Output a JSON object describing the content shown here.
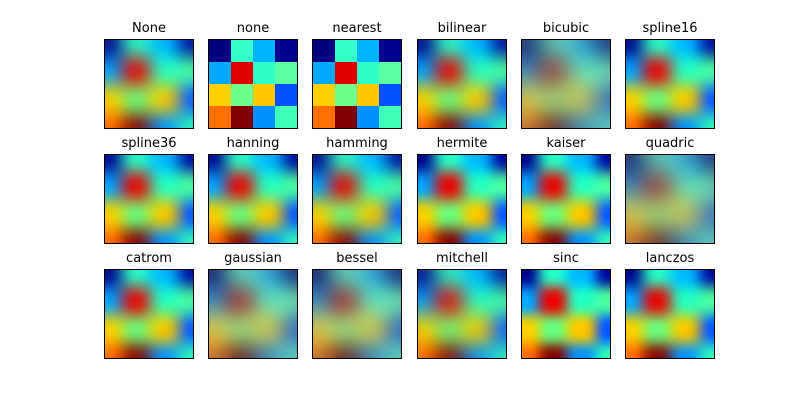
{
  "chart_data": {
    "type": "heatmap",
    "title": "",
    "colormap": "jet",
    "layout": {
      "rows": 3,
      "cols": 6
    },
    "data_grid": {
      "shape": [
        4,
        4
      ],
      "colors": [
        [
          "#00007f",
          "#33ffc9",
          "#00b4ff",
          "#00008f"
        ],
        [
          "#00a8ff",
          "#df0000",
          "#30ffc6",
          "#5affa0"
        ],
        [
          "#ffd000",
          "#6cff8a",
          "#ffc800",
          "#0050ff"
        ],
        [
          "#ff7000",
          "#800000",
          "#0090ff",
          "#40ffb7"
        ]
      ]
    },
    "panels": [
      {
        "title": "None",
        "blur": 9
      },
      {
        "title": "none",
        "blur": 0
      },
      {
        "title": "nearest",
        "blur": 0
      },
      {
        "title": "bilinear",
        "blur": 9
      },
      {
        "title": "bicubic",
        "blur": 13
      },
      {
        "title": "spline16",
        "blur": 8
      },
      {
        "title": "spline36",
        "blur": 8
      },
      {
        "title": "hanning",
        "blur": 8
      },
      {
        "title": "hamming",
        "blur": 9
      },
      {
        "title": "hermite",
        "blur": 7
      },
      {
        "title": "kaiser",
        "blur": 7
      },
      {
        "title": "quadric",
        "blur": 13
      },
      {
        "title": "catrom",
        "blur": 8
      },
      {
        "title": "gaussian",
        "blur": 12
      },
      {
        "title": "bessel",
        "blur": 12
      },
      {
        "title": "mitchell",
        "blur": 10
      },
      {
        "title": "sinc",
        "blur": 6
      },
      {
        "title": "lanczos",
        "blur": 7
      }
    ],
    "xlabel": "",
    "ylabel": "",
    "axes_ticks": "none"
  }
}
